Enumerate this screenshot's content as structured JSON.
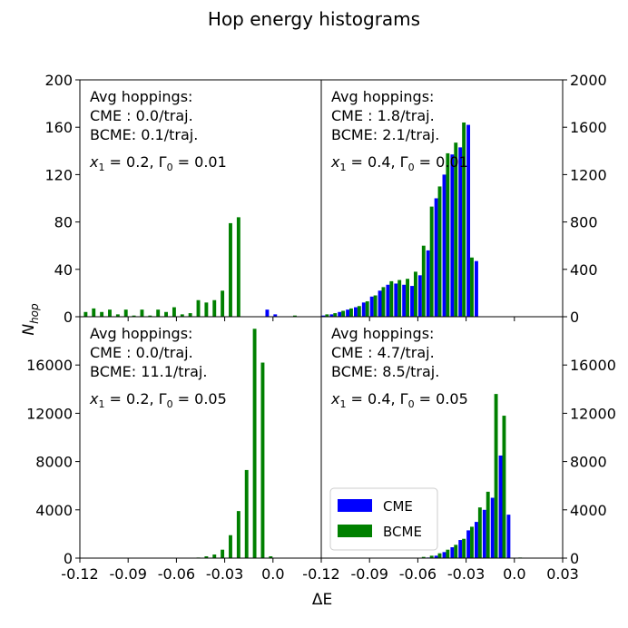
{
  "figure": {
    "title": "Hop energy histograms",
    "xlabel": "ΔE",
    "ylabel": "N",
    "ylabel_sub": "hop"
  },
  "colors": {
    "CME": "#0000ff",
    "BCME": "#008000",
    "frame": "#000000"
  },
  "legend": {
    "placement": "bottom-left of bottom-right panel",
    "entries": [
      "CME",
      "BCME"
    ]
  },
  "chart_data": [
    {
      "type": "bar",
      "panel": "top-left",
      "annotation": [
        "Avg hoppings:",
        "CME : 0.0/traj.",
        "BCME: 0.1/traj."
      ],
      "params": {
        "x1": "0.2",
        "gamma0": "0.01"
      },
      "xlim": [
        -0.12,
        0.03
      ],
      "ylim": [
        0,
        200
      ],
      "yticks": [
        0,
        40,
        80,
        120,
        160,
        200
      ],
      "ytick_side": "left",
      "show_xticklabels": false,
      "bin_width": 0.005,
      "x": [
        -0.1175,
        -0.1125,
        -0.1075,
        -0.1025,
        -0.0975,
        -0.0925,
        -0.0875,
        -0.0825,
        -0.0775,
        -0.0725,
        -0.0675,
        -0.0625,
        -0.0575,
        -0.0525,
        -0.0475,
        -0.0425,
        -0.0375,
        -0.0325,
        -0.0275,
        -0.0225,
        -0.0175,
        -0.0125,
        -0.0075,
        -0.0025,
        0.0025,
        0.0075,
        0.0125
      ],
      "series": [
        {
          "name": "CME",
          "values": [
            0,
            0,
            0,
            0,
            0,
            0,
            0,
            0,
            0,
            0,
            0,
            0,
            0,
            0,
            0,
            0,
            0,
            0,
            0,
            0,
            0,
            0,
            0,
            6,
            2,
            0,
            0
          ]
        },
        {
          "name": "BCME",
          "values": [
            4,
            7,
            4,
            6,
            2,
            6,
            1,
            6,
            1,
            6,
            4,
            8,
            2,
            3,
            14,
            12,
            14,
            22,
            79,
            84,
            0,
            0,
            0,
            0,
            0,
            0,
            1
          ]
        }
      ]
    },
    {
      "type": "bar",
      "panel": "top-right",
      "annotation": [
        "Avg hoppings:",
        "CME : 1.8/traj.",
        "BCME: 2.1/traj."
      ],
      "params": {
        "x1": "0.4",
        "gamma0": "0.01"
      },
      "xlim": [
        -0.12,
        0.03
      ],
      "ylim": [
        0,
        2000
      ],
      "yticks": [
        0,
        400,
        800,
        1200,
        1600,
        2000
      ],
      "ytick_side": "right",
      "show_xticklabels": false,
      "bin_width": 0.005,
      "x": [
        -0.1175,
        -0.1125,
        -0.1075,
        -0.1025,
        -0.0975,
        -0.0925,
        -0.0875,
        -0.0825,
        -0.0775,
        -0.0725,
        -0.0675,
        -0.0625,
        -0.0575,
        -0.0525,
        -0.0475,
        -0.0425,
        -0.0375,
        -0.0325,
        -0.0275,
        -0.0225,
        -0.0175,
        -0.0125,
        -0.0075,
        -0.0025
      ],
      "series": [
        {
          "name": "CME",
          "values": [
            10,
            20,
            40,
            60,
            80,
            120,
            170,
            220,
            270,
            280,
            270,
            260,
            350,
            560,
            1000,
            1200,
            1370,
            1430,
            1620,
            470,
            0,
            0,
            0,
            0
          ]
        },
        {
          "name": "BCME",
          "values": [
            20,
            30,
            50,
            70,
            90,
            130,
            180,
            250,
            300,
            310,
            320,
            380,
            600,
            930,
            1100,
            1380,
            1470,
            1640,
            500,
            0,
            0,
            0,
            0,
            0
          ]
        }
      ]
    },
    {
      "type": "bar",
      "panel": "bottom-left",
      "annotation": [
        "Avg hoppings:",
        "CME : 0.0/traj.",
        "BCME: 11.1/traj."
      ],
      "params": {
        "x1": "0.2",
        "gamma0": "0.05"
      },
      "xlim": [
        -0.12,
        0.03
      ],
      "ylim": [
        0,
        20000
      ],
      "yticks": [
        0,
        4000,
        8000,
        12000,
        16000
      ],
      "ytick_side": "left",
      "show_xticklabels": true,
      "xticks": [
        "-0.12",
        "-0.09",
        "-0.06",
        "-0.03",
        "0.0"
      ],
      "bin_width": 0.005,
      "x": [
        -0.0475,
        -0.0425,
        -0.0375,
        -0.0325,
        -0.0275,
        -0.0225,
        -0.0175,
        -0.0125,
        -0.0075,
        -0.0025,
        0.0025,
        0.0075
      ],
      "series": [
        {
          "name": "CME",
          "values": [
            0,
            0,
            0,
            0,
            0,
            0,
            0,
            0,
            0,
            0,
            0,
            0
          ]
        },
        {
          "name": "BCME",
          "values": [
            50,
            150,
            300,
            700,
            1900,
            3900,
            7300,
            19000,
            16200,
            150,
            0,
            0
          ]
        }
      ]
    },
    {
      "type": "bar",
      "panel": "bottom-right",
      "annotation": [
        "Avg hoppings:",
        "CME : 4.7/traj.",
        "BCME: 8.5/traj."
      ],
      "params": {
        "x1": "0.4",
        "gamma0": "0.05"
      },
      "xlim": [
        -0.12,
        0.03
      ],
      "ylim": [
        0,
        20000
      ],
      "yticks": [
        0,
        4000,
        8000,
        12000,
        16000
      ],
      "ytick_side": "right",
      "show_xticklabels": true,
      "xticks": [
        "-0.12",
        "-0.09",
        "-0.06",
        "-0.03",
        "0.0",
        "0.03"
      ],
      "bin_width": 0.005,
      "x": [
        -0.0575,
        -0.0525,
        -0.0475,
        -0.0425,
        -0.0375,
        -0.0325,
        -0.0275,
        -0.0225,
        -0.0175,
        -0.0125,
        -0.0075,
        -0.0025,
        0.0025
      ],
      "series": [
        {
          "name": "CME",
          "values": [
            0,
            50,
            200,
            500,
            900,
            1500,
            2300,
            3000,
            4000,
            5000,
            8500,
            3600,
            0
          ]
        },
        {
          "name": "BCME",
          "values": [
            100,
            200,
            400,
            700,
            1100,
            1600,
            2600,
            4200,
            5500,
            13600,
            11800,
            0,
            50
          ]
        }
      ]
    }
  ]
}
